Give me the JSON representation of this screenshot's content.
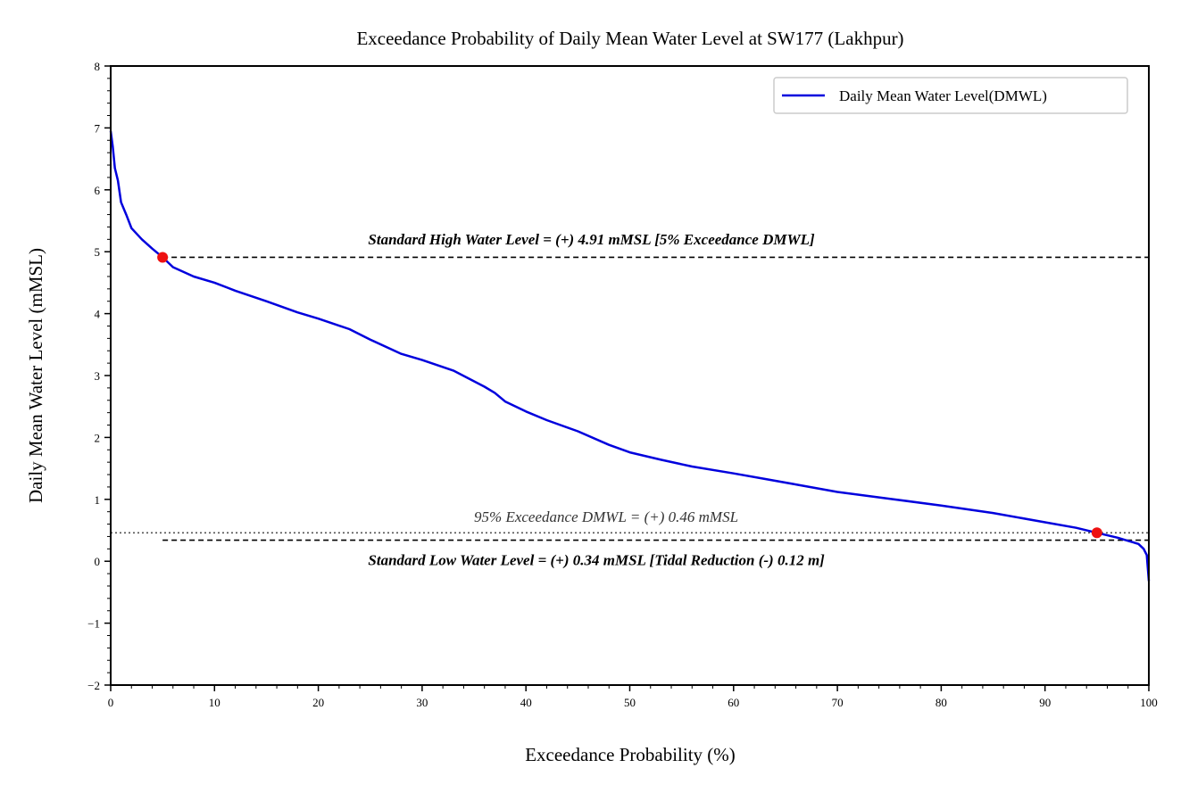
{
  "chart_data": {
    "type": "line",
    "title": "Exceedance Probability of Daily Mean Water Level at SW177 (Lakhpur)",
    "xlabel": "Exceedance Probability (%)",
    "ylabel": "Daily Mean Water Level (mMSL)",
    "xlim": [
      0,
      100
    ],
    "ylim": [
      -2,
      8
    ],
    "xticks": [
      0,
      10,
      20,
      30,
      40,
      50,
      60,
      70,
      80,
      90,
      100
    ],
    "yticks": [
      -2,
      -1,
      0,
      1,
      2,
      3,
      4,
      5,
      6,
      7,
      8
    ],
    "xtick_labels": [
      "0",
      "10",
      "20",
      "30",
      "40",
      "50",
      "60",
      "70",
      "80",
      "90",
      "100"
    ],
    "ytick_labels": [
      "−2",
      "−1",
      "0",
      "1",
      "2",
      "3",
      "4",
      "5",
      "6",
      "7",
      "8"
    ],
    "grid": false,
    "legend_position": "top-right",
    "series": [
      {
        "name": "Daily Mean Water Level(DMWL)",
        "color": "#0000dd",
        "x": [
          0,
          0.2,
          0.4,
          0.7,
          1,
          1.5,
          2,
          3,
          4,
          5,
          6,
          8,
          10,
          12,
          15,
          18,
          20,
          23,
          25,
          28,
          30,
          33,
          36,
          37,
          38,
          40,
          42,
          45,
          48,
          50,
          53,
          56,
          60,
          63,
          66,
          70,
          75,
          80,
          85,
          90,
          93,
          95,
          97,
          98,
          99,
          99.5,
          99.8,
          100
        ],
        "y": [
          6.95,
          6.7,
          6.35,
          6.15,
          5.8,
          5.6,
          5.38,
          5.2,
          5.05,
          4.91,
          4.75,
          4.6,
          4.5,
          4.37,
          4.2,
          4.02,
          3.92,
          3.75,
          3.58,
          3.35,
          3.25,
          3.08,
          2.82,
          2.72,
          2.58,
          2.42,
          2.28,
          2.1,
          1.88,
          1.76,
          1.64,
          1.53,
          1.42,
          1.33,
          1.24,
          1.12,
          1.01,
          0.9,
          0.78,
          0.63,
          0.54,
          0.46,
          0.38,
          0.33,
          0.28,
          0.2,
          0.1,
          -0.32
        ]
      }
    ],
    "reference_lines": [
      {
        "y": 4.91,
        "style": "dashed",
        "color": "#000000",
        "label": "Standard High Water Level = (+) 4.91 mMSL [5% Exceedance DMWL]",
        "label_x": 24.8,
        "label_y": 5.12
      },
      {
        "y": 0.46,
        "style": "dotted",
        "color": "#555555",
        "label": "95% Exceedance DMWL = (+) 0.46 mMSL",
        "label_x": 35,
        "label_y": 0.64
      },
      {
        "y": 0.34,
        "style": "dashed",
        "color": "#000000",
        "label": "Standard Low Water Level = (+) 0.34 mMSL [Tidal Reduction (-) 0.12 m]",
        "label_x": 24.8,
        "label_y": -0.06
      }
    ],
    "markers": [
      {
        "x": 5,
        "y": 4.91,
        "color": "#ee1111"
      },
      {
        "x": 95,
        "y": 0.46,
        "color": "#ee1111"
      }
    ]
  }
}
